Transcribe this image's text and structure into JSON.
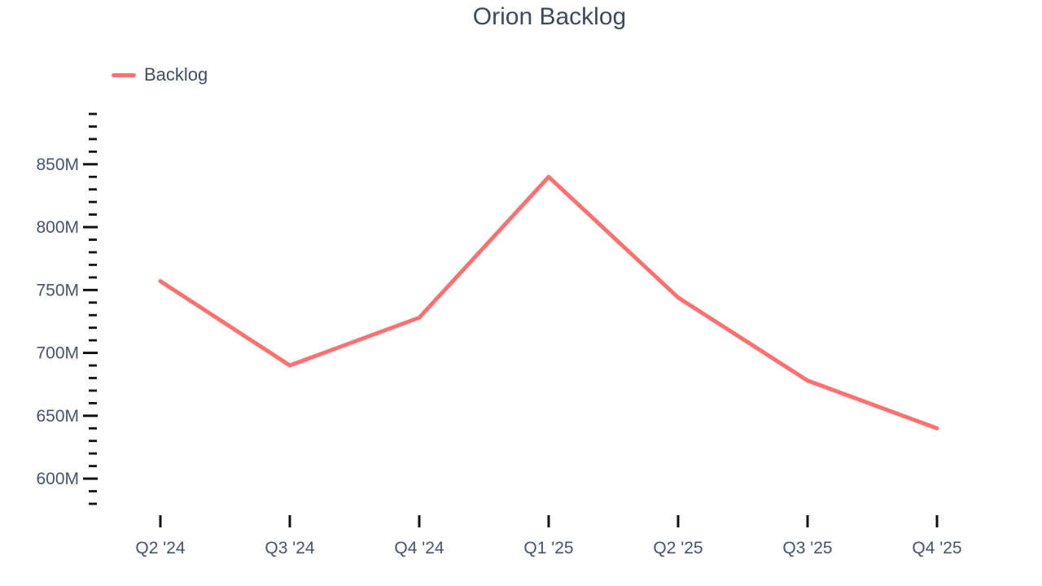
{
  "chart_data": {
    "type": "line",
    "title": "Orion Backlog",
    "categories": [
      "Q2 '24",
      "Q3 '24",
      "Q4 '24",
      "Q1 '25",
      "Q2 '25",
      "Q3 '25",
      "Q4 '25"
    ],
    "series": [
      {
        "name": "Backlog",
        "color": "#FC7272",
        "values": [
          757,
          690,
          728,
          840,
          744,
          678,
          640
        ]
      }
    ],
    "values_unit": "M",
    "xlabel": "",
    "ylabel": "",
    "y_axis": {
      "min": 580,
      "max": 890,
      "minor_step": 10,
      "major_step": 50,
      "unit": "M",
      "tick_labels": [
        "600M",
        "650M",
        "700M",
        "750M",
        "800M",
        "850M"
      ]
    },
    "legend": {
      "position": "top-left",
      "entries": [
        "Backlog"
      ]
    },
    "grid": "off",
    "colors": {
      "title_text": "#3E4A5C",
      "axis_text": "#47536B",
      "tick": "#111111",
      "background": "#ffffff"
    }
  }
}
